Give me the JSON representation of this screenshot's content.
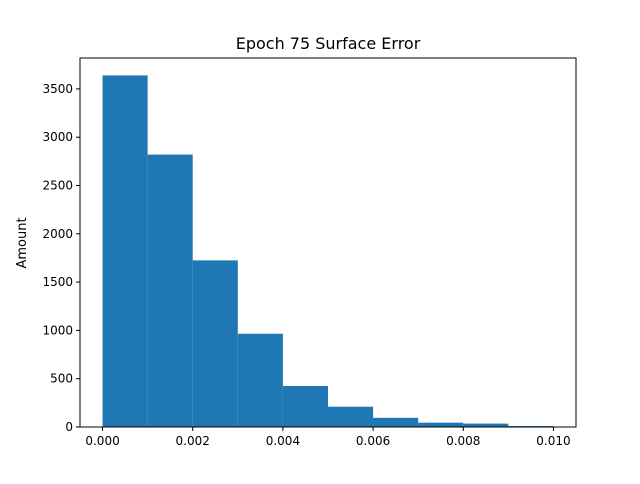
{
  "chart_data": {
    "type": "bar",
    "title": "Epoch 75 Surface Error",
    "xlabel": "",
    "ylabel": "Amount",
    "bin_edges": [
      0.0,
      0.001,
      0.002,
      0.003,
      0.004,
      0.005,
      0.006,
      0.007,
      0.008,
      0.009,
      0.01
    ],
    "values": [
      3640,
      2820,
      1725,
      965,
      425,
      210,
      95,
      45,
      35,
      10
    ],
    "xlim": [
      -0.0005,
      0.0105
    ],
    "ylim": [
      0,
      3820
    ],
    "xticks": [
      0.0,
      0.002,
      0.004,
      0.006,
      0.008,
      0.01
    ],
    "xtick_labels": [
      "0.000",
      "0.002",
      "0.004",
      "0.006",
      "0.008",
      "0.010"
    ],
    "yticks": [
      0,
      500,
      1000,
      1500,
      2000,
      2500,
      3000,
      3500
    ],
    "ytick_labels": [
      "0",
      "500",
      "1000",
      "1500",
      "2000",
      "2500",
      "3000",
      "3500"
    ],
    "grid": false,
    "colors": {
      "bar": "#1f77b4",
      "axes": "#000000",
      "background": "#ffffff"
    }
  }
}
